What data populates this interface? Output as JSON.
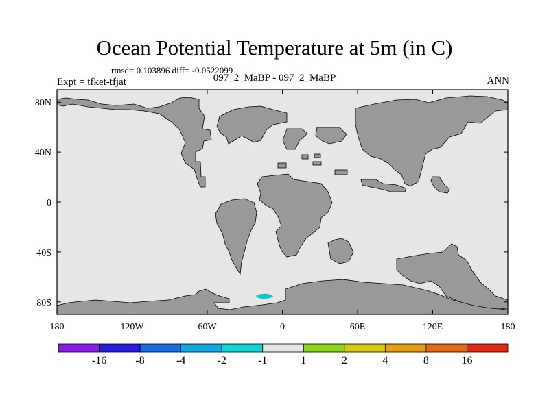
{
  "plot": {
    "title": "Ocean Potential Temperature at 5m (in C)",
    "stats_text": "rmsd= 0.103896 diff= -0.0522099",
    "subtitle": "097_2_MaBP - 097_2_MaBP",
    "left_label": "Expt = tfket-tfjat",
    "right_label": "ANN"
  },
  "map": {
    "ocean_color": "#e6e6e6",
    "land_color": "#999999",
    "anomaly_color": "#00cccc",
    "lon_ticks": [
      "180",
      "120W",
      "60W",
      "0",
      "60E",
      "120E",
      "180"
    ],
    "lat_ticks": [
      "80N",
      "40N",
      "0",
      "40S",
      "80S"
    ]
  },
  "colorbar": {
    "colors": [
      "#8b1ee6",
      "#2a1ee0",
      "#1a6fe0",
      "#12a8e0",
      "#12d6d6",
      "#e6e6e6",
      "#8ad61a",
      "#d6c812",
      "#e6a012",
      "#e66a12",
      "#e02a12"
    ],
    "labels": [
      "-16",
      "-8",
      "-4",
      "-2",
      "-1",
      "1",
      "2",
      "4",
      "8",
      "16"
    ]
  }
}
